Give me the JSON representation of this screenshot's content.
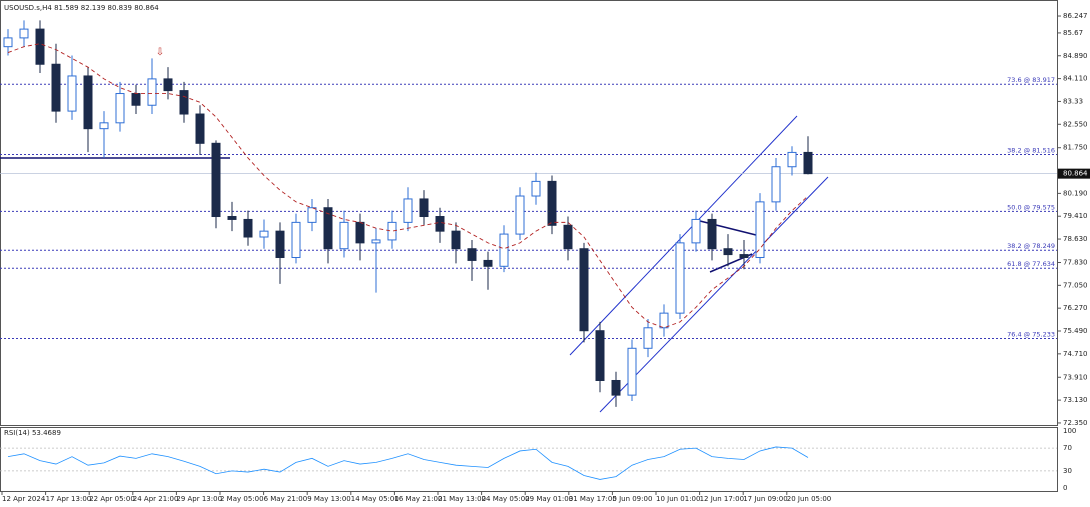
{
  "chart_data": {
    "type": "candlestick",
    "title": "USOUSD.s,H4  81.589 82.139 80.839 80.864",
    "up_color": "#2f6fd6",
    "down_color": "#1b2a4a",
    "ma_color": "#b22222",
    "current": 80.864,
    "ylim": [
      72.28,
      86.76
    ],
    "yticks": [
      86.247,
      85.67,
      {
        "value": 84.89,
        "label": "84.890"
      },
      {
        "value": 84.11,
        "label": "84.110"
      },
      83.33,
      {
        "value": 82.55,
        "label": "82.550"
      },
      {
        "value": 81.75,
        "label": "81.750"
      },
      {
        "value": 80.19,
        "label": "80.190"
      },
      {
        "value": 79.41,
        "label": "79.410"
      },
      {
        "value": 78.63,
        "label": "78.630"
      },
      {
        "value": 77.83,
        "label": "77.830"
      },
      {
        "value": 77.05,
        "label": "77.050"
      },
      {
        "value": 76.27,
        "label": "76.270"
      },
      {
        "value": 75.49,
        "label": "75.490"
      },
      {
        "value": 74.71,
        "label": "74.710"
      },
      {
        "value": 73.91,
        "label": "73.910"
      },
      {
        "value": 73.13,
        "label": "73.130"
      },
      {
        "value": 72.35,
        "label": "72.350"
      }
    ],
    "levels": [
      {
        "label": "73.6 @ 83.917",
        "value": 83.917
      },
      {
        "label": "38.2 @ 81.516",
        "value": 81.516
      },
      {
        "label": "50.0 @ 79.575",
        "value": 79.575
      },
      {
        "label": "38.2 @ 78.249",
        "value": 78.249
      },
      {
        "label": "61.8 @ 77.634",
        "value": 77.634
      },
      {
        "label": "76.4 @ 75.233",
        "value": 75.233
      }
    ],
    "x_labels": [
      "12 Apr 2024",
      "17 Apr 13:00",
      "22 Apr 05:00",
      "24 Apr 21:00",
      "29 Apr 13:00",
      "2 May 05:00",
      "6 May 21:00",
      "9 May 13:00",
      "14 May 05:00",
      "16 May 21:00",
      "21 May 13:00",
      "24 May 05:00",
      "29 May 01:00",
      "31 May 17:00",
      "5 Jun 09:00",
      "10 Jun 01:00",
      "12 Jun 17:00",
      "17 Jun 09:00",
      "20 Jun 05:00"
    ],
    "candles": {
      "open": [
        85.2,
        85.5,
        85.8,
        84.6,
        83.0,
        84.2,
        82.4,
        82.6,
        83.6,
        83.2,
        84.1,
        83.7,
        82.9,
        81.9,
        79.4,
        79.3,
        78.7,
        78.9,
        78.0,
        79.2,
        79.7,
        78.3,
        79.2,
        78.5,
        78.6,
        79.2,
        80.0,
        79.4,
        78.9,
        78.3,
        77.9,
        77.7,
        78.8,
        80.1,
        80.6,
        79.1,
        78.3,
        75.5,
        73.8,
        73.3,
        74.9,
        75.6,
        76.1,
        78.5,
        79.3,
        78.3,
        78.1,
        78.0,
        79.9,
        81.1,
        81.589
      ],
      "high": [
        85.8,
        86.1,
        86.1,
        85.3,
        84.9,
        84.5,
        83.0,
        84.0,
        83.9,
        84.8,
        84.5,
        84.0,
        83.2,
        82.0,
        79.9,
        79.6,
        79.3,
        79.2,
        79.5,
        80.0,
        80.0,
        79.6,
        79.5,
        79.0,
        79.6,
        80.4,
        80.3,
        79.7,
        79.2,
        78.6,
        78.2,
        79.1,
        80.4,
        80.9,
        80.8,
        79.4,
        78.5,
        75.8,
        74.1,
        75.2,
        75.9,
        76.4,
        78.8,
        79.6,
        79.5,
        78.8,
        78.6,
        80.2,
        81.4,
        81.8,
        82.139
      ],
      "low": [
        84.9,
        85.2,
        84.3,
        82.6,
        82.7,
        81.6,
        81.4,
        82.3,
        82.9,
        82.9,
        83.4,
        82.6,
        81.5,
        79.0,
        78.9,
        78.4,
        78.3,
        77.1,
        77.8,
        78.9,
        77.8,
        78.0,
        77.9,
        76.8,
        78.3,
        78.9,
        79.1,
        78.5,
        77.8,
        77.2,
        76.9,
        77.5,
        78.6,
        79.8,
        78.8,
        77.9,
        75.1,
        73.4,
        72.9,
        73.1,
        74.6,
        75.3,
        75.9,
        78.2,
        77.9,
        77.7,
        77.6,
        77.8,
        79.6,
        80.8,
        80.839
      ],
      "close": [
        85.5,
        85.8,
        84.6,
        83.0,
        84.2,
        82.4,
        82.6,
        83.6,
        83.2,
        84.1,
        83.7,
        82.9,
        81.9,
        79.4,
        79.3,
        78.7,
        78.9,
        78.0,
        79.2,
        79.7,
        78.3,
        79.2,
        78.5,
        78.6,
        79.2,
        80.0,
        79.4,
        78.9,
        78.3,
        77.9,
        77.7,
        78.8,
        80.1,
        80.6,
        79.1,
        78.3,
        75.5,
        73.8,
        73.3,
        74.9,
        75.6,
        76.1,
        78.5,
        79.3,
        78.3,
        78.1,
        78.0,
        79.9,
        81.1,
        81.589,
        80.864
      ]
    },
    "ma": [
      85.0,
      85.2,
      85.3,
      85.1,
      84.8,
      84.5,
      84.1,
      83.8,
      83.6,
      83.6,
      83.6,
      83.5,
      83.3,
      82.8,
      82.1,
      81.4,
      80.8,
      80.3,
      79.9,
      79.7,
      79.5,
      79.3,
      79.2,
      79.0,
      78.9,
      79.0,
      79.1,
      79.2,
      79.1,
      78.8,
      78.5,
      78.3,
      78.5,
      78.9,
      79.2,
      79.2,
      78.7,
      77.9,
      77.1,
      76.3,
      75.8,
      75.6,
      75.8,
      76.3,
      76.9,
      77.3,
      77.7,
      78.3,
      79.0,
      79.6,
      80.1
    ],
    "rsi": {
      "label": "RSI(14) 53.4689",
      "color": "#1e90ff",
      "ylim": [
        0,
        100
      ],
      "yticks": [
        100,
        70,
        30,
        0
      ],
      "values": [
        55,
        60,
        48,
        42,
        55,
        40,
        44,
        56,
        52,
        60,
        55,
        47,
        38,
        25,
        30,
        28,
        33,
        28,
        45,
        52,
        38,
        48,
        42,
        45,
        52,
        60,
        50,
        45,
        40,
        38,
        36,
        52,
        65,
        68,
        45,
        38,
        22,
        15,
        20,
        40,
        50,
        55,
        68,
        70,
        55,
        52,
        50,
        65,
        72,
        70,
        53.4689
      ]
    }
  }
}
